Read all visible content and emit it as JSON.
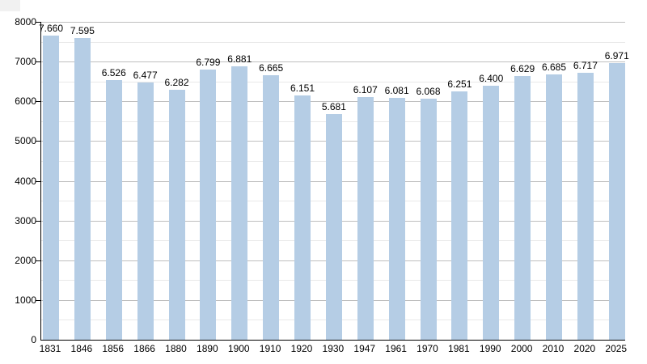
{
  "chart_data": {
    "type": "bar",
    "title": "",
    "xlabel": "",
    "ylabel": "",
    "categories": [
      "1831",
      "1846",
      "1856",
      "1866",
      "1880",
      "1890",
      "1900",
      "1910",
      "1920",
      "1930",
      "1947",
      "1961",
      "1970",
      "1981",
      "1990",
      "2000",
      "2010",
      "2020",
      "2025"
    ],
    "values": [
      7660,
      7595,
      6526,
      6477,
      6282,
      6799,
      6881,
      6665,
      6151,
      5681,
      6107,
      6081,
      6068,
      6251,
      6400,
      6629,
      6685,
      6717,
      6971
    ],
    "value_labels": [
      "7.660",
      "7.595",
      "6.526",
      "6.477",
      "6.282",
      "6.799",
      "6.881",
      "6.665",
      "6.151",
      "5.681",
      "6.107",
      "6.081",
      "6.068",
      "6.251",
      "6.400",
      "6.629",
      "6.685",
      "6.717",
      "6.971"
    ],
    "ylim": [
      0,
      8000
    ],
    "y_major_step": 1000,
    "y_minor_step": 500,
    "y_tick_labels": [
      "0",
      "1000",
      "2000",
      "3000",
      "4000",
      "5000",
      "6000",
      "7000",
      "8000"
    ],
    "grid": true,
    "legend": false,
    "colors": {
      "bar_fill": "#b5cde5",
      "major_gridline": "#bfbfbf",
      "minor_gridline": "#e9e9e9",
      "axis": "#000000",
      "text": "#000000",
      "background": "#ffffff",
      "corner_artifact": "#f1f1f1"
    }
  }
}
